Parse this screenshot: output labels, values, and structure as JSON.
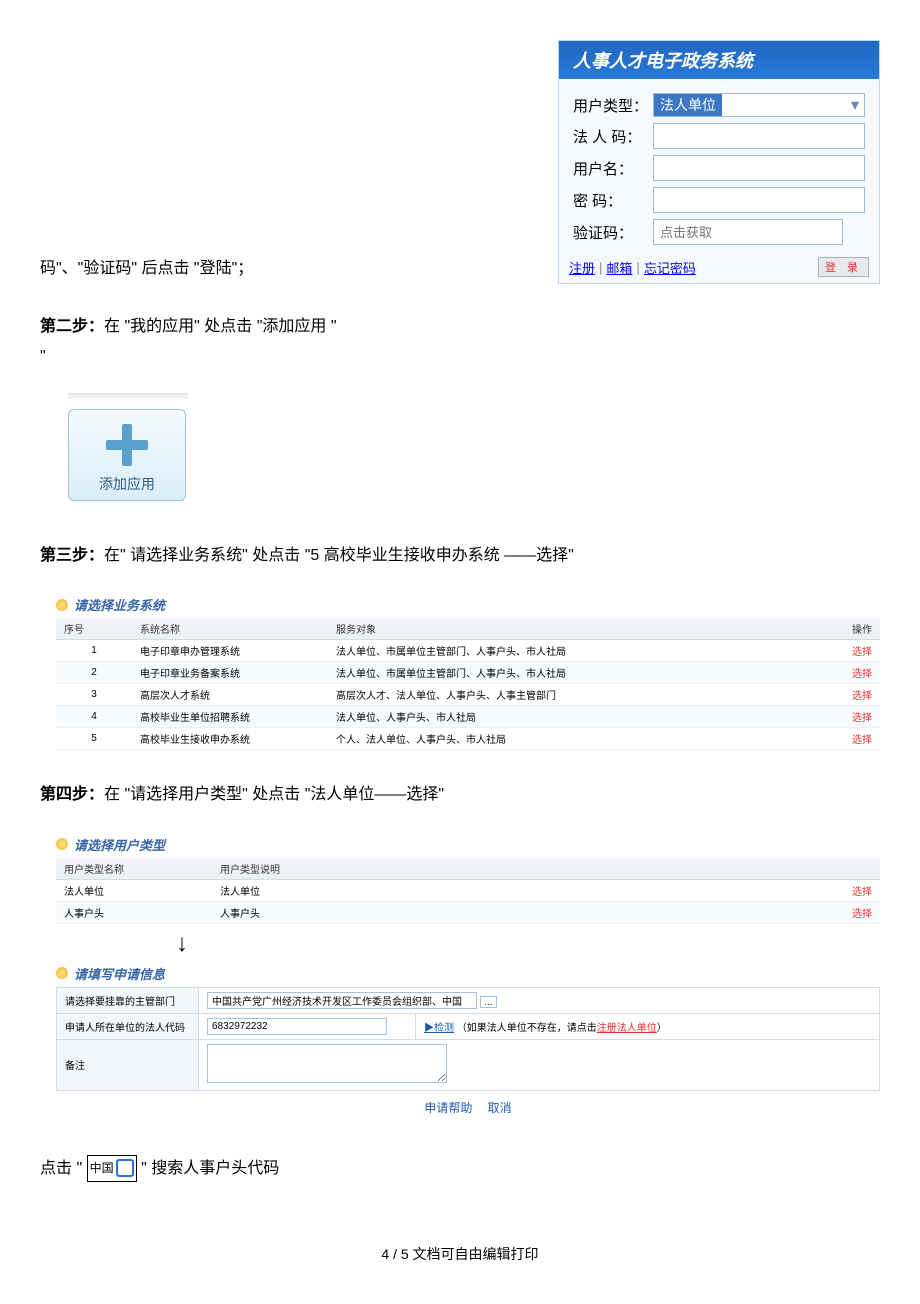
{
  "login": {
    "title": "人事人才电子政务系统",
    "fields": {
      "userType": {
        "label": "用户类型：",
        "value": "法人单位"
      },
      "code": {
        "label": "法 人 码："
      },
      "user": {
        "label": "用户名："
      },
      "pwd": {
        "label": "密    码："
      },
      "captcha": {
        "label": "验证码：",
        "placeholder": "点击获取"
      }
    },
    "links": {
      "register": "注册",
      "mail": "邮箱",
      "forgot": "忘记密码",
      "login": "登  录"
    }
  },
  "intro_line": "码\"、\"验证码\" 后点击 \"登陆\"；",
  "step2": {
    "title": "第二步：",
    "text": "在 \"我的应用\" 处点击 \"添加应用 \"",
    "tile": "添加应用"
  },
  "step3": {
    "title": "第三步：",
    "text": "在\" 请选择业务系统\" 处点击 \"5 高校毕业生接收申办系统   ——选择\"",
    "panel": "请选择业务系统",
    "cols": {
      "no": "序号",
      "name": "系统名称",
      "target": "服务对象",
      "op": "操作"
    },
    "op_label": "选择",
    "rows": [
      {
        "no": "1",
        "name": "电子印章申办管理系统",
        "target": "法人单位、市属单位主管部门、人事户头、市人社局"
      },
      {
        "no": "2",
        "name": "电子印章业务备案系统",
        "target": "法人单位、市属单位主管部门、人事户头、市人社局"
      },
      {
        "no": "3",
        "name": "高层次人才系统",
        "target": "高层次人才、法人单位、人事户头、人事主管部门"
      },
      {
        "no": "4",
        "name": "高校毕业生单位招聘系统",
        "target": "法人单位、人事户头、市人社局"
      },
      {
        "no": "5",
        "name": "高校毕业生接收申办系统",
        "target": "个人、法人单位、人事户头、市人社局"
      }
    ]
  },
  "step4": {
    "title": "第四步：",
    "text": "在 \"请选择用户类型\" 处点击 \"法人单位——选择\"",
    "panel": "请选择用户类型",
    "cols": {
      "name": "用户类型名称",
      "desc": "用户类型说明",
      "op": ""
    },
    "op_label": "选择",
    "rows": [
      {
        "name": "法人单位",
        "desc": "法人单位"
      },
      {
        "name": "人事户头",
        "desc": "人事户头"
      }
    ]
  },
  "apply": {
    "panel": "请填写申请信息",
    "rows": {
      "dept": {
        "label": "请选择要挂靠的主管部门",
        "value": "中国共产党广州经济技术开发区工作委员会组织部、中国"
      },
      "farena": {
        "label": "申请人所在单位的法人代码",
        "value": "6832972232",
        "check": "▶检测",
        "hint1": "（如果法人单位不存在，请点击",
        "hint2": "注册法人单位",
        "hint3": "）"
      },
      "remark": {
        "label": "备注"
      }
    },
    "actions": {
      "help": "申请帮助",
      "cancel": "取消"
    }
  },
  "ime": {
    "pre": "点击 \"",
    "chip": "中国",
    "post": "\" 搜索人事户头代码"
  },
  "footer": "4 / 5 文档可自由编辑打印"
}
